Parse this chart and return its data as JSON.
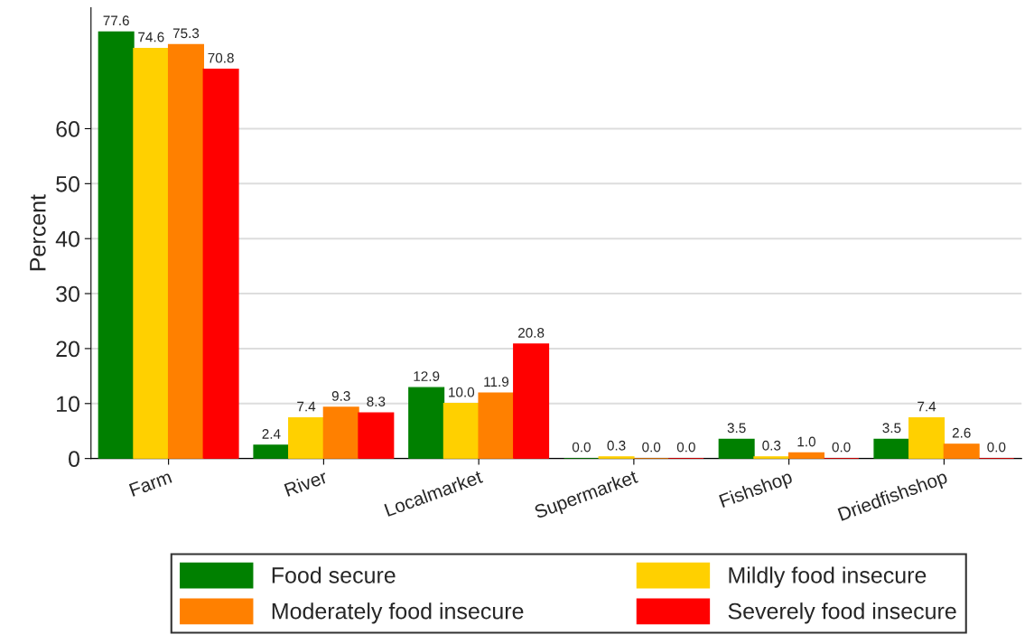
{
  "chart_data": {
    "type": "bar",
    "ylabel": "Percent",
    "categories": [
      "Farm",
      "River",
      "Localmarket",
      "Supermarket",
      "Fishshop",
      "Driedfishshop"
    ],
    "series": [
      {
        "name": "Food secure",
        "color": "#008000",
        "values": [
          77.6,
          2.4,
          12.9,
          0,
          3.5,
          3.5
        ],
        "value_labels": [
          "77.6",
          "2.4",
          "12.9",
          "0.0",
          "3.5",
          "3.5"
        ]
      },
      {
        "name": "Mildly food insecure",
        "color": "#ffd000",
        "values": [
          74.6,
          7.4,
          10,
          0.3,
          0.3,
          7.4
        ],
        "value_labels": [
          "74.6",
          "7.4",
          "10.0",
          "0.3",
          "0.3",
          "7.4"
        ]
      },
      {
        "name": "Moderately food insecure",
        "color": "#ff8000",
        "values": [
          75.3,
          9.3,
          11.9,
          0,
          1,
          2.6
        ],
        "value_labels": [
          "75.3",
          "9.3",
          "11.9",
          "0.0",
          "1.0",
          "2.6"
        ]
      },
      {
        "name": "Severely food insecure",
        "color": "#ff0000",
        "values": [
          70.8,
          8.3,
          20.8,
          0,
          0,
          0
        ],
        "value_labels": [
          "70.8",
          "8.3",
          "20.8",
          "0.0",
          "0.0",
          "0.0"
        ]
      }
    ],
    "ylim": [
      0,
      82
    ],
    "yticks": [
      0,
      10,
      20,
      30,
      40,
      50,
      60
    ],
    "grid": "y",
    "legend": "bottom"
  }
}
